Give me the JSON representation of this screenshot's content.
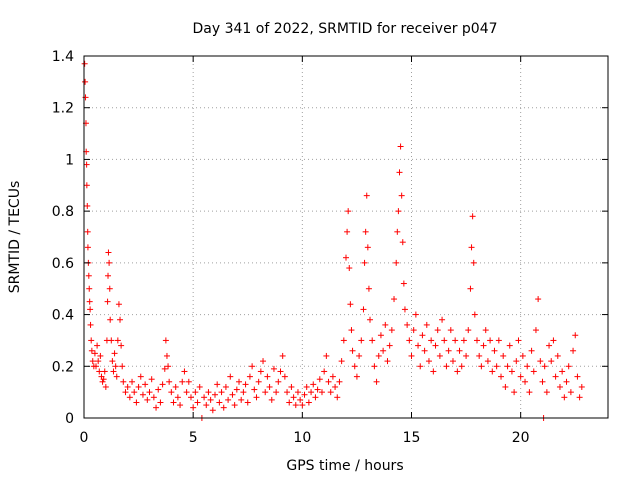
{
  "chart_data": {
    "type": "scatter",
    "title": "Day 341 of 2022, SRMTID for receiver p047",
    "xlabel": "GPS time / hours",
    "ylabel": "SRMTID / TECUs",
    "xlim": [
      0,
      24
    ],
    "ylim": [
      0,
      1.4
    ],
    "xticks": [
      0,
      5,
      10,
      15,
      20
    ],
    "xtick_labels": [
      "0",
      "5",
      "10",
      "15",
      "20"
    ],
    "yticks": [
      0,
      0.2,
      0.4,
      0.6,
      0.8,
      1.0,
      1.2,
      1.4
    ],
    "ytick_labels": [
      "0",
      "0.2",
      "0.4",
      "0.6",
      "0.8",
      "1",
      "1.2",
      "1.4"
    ],
    "grid": true,
    "marker": "plus",
    "color": "#ff0000",
    "series": [
      {
        "name": "SRMTID p047",
        "points": [
          [
            0.03,
            1.37
          ],
          [
            0.05,
            1.3
          ],
          [
            0.07,
            1.24
          ],
          [
            0.09,
            1.14
          ],
          [
            0.1,
            1.03
          ],
          [
            0.12,
            0.98
          ],
          [
            0.13,
            0.9
          ],
          [
            0.15,
            0.82
          ],
          [
            0.17,
            0.72
          ],
          [
            0.18,
            0.66
          ],
          [
            0.2,
            0.6
          ],
          [
            0.22,
            0.55
          ],
          [
            0.24,
            0.5
          ],
          [
            0.26,
            0.45
          ],
          [
            0.28,
            0.42
          ],
          [
            0.3,
            0.36
          ],
          [
            0.33,
            0.3
          ],
          [
            0.36,
            0.26
          ],
          [
            0.4,
            0.22
          ],
          [
            0.45,
            0.2
          ],
          [
            0.5,
            0.25
          ],
          [
            0.55,
            0.2
          ],
          [
            0.6,
            0.28
          ],
          [
            0.65,
            0.22
          ],
          [
            0.7,
            0.18
          ],
          [
            0.75,
            0.24
          ],
          [
            0.8,
            0.16
          ],
          [
            0.85,
            0.14
          ],
          [
            0.9,
            0.15
          ],
          [
            0.95,
            0.18
          ],
          [
            1.0,
            0.12
          ],
          [
            1.05,
            0.3
          ],
          [
            1.08,
            0.45
          ],
          [
            1.1,
            0.55
          ],
          [
            1.12,
            0.64
          ],
          [
            1.15,
            0.6
          ],
          [
            1.18,
            0.5
          ],
          [
            1.2,
            0.38
          ],
          [
            1.25,
            0.3
          ],
          [
            1.3,
            0.22
          ],
          [
            1.35,
            0.18
          ],
          [
            1.4,
            0.25
          ],
          [
            1.45,
            0.2
          ],
          [
            1.5,
            0.16
          ],
          [
            1.55,
            0.3
          ],
          [
            1.6,
            0.44
          ],
          [
            1.65,
            0.38
          ],
          [
            1.7,
            0.28
          ],
          [
            1.75,
            0.2
          ],
          [
            1.8,
            0.14
          ],
          [
            1.9,
            0.1
          ],
          [
            2.0,
            0.12
          ],
          [
            2.1,
            0.08
          ],
          [
            2.2,
            0.14
          ],
          [
            2.3,
            0.1
          ],
          [
            2.4,
            0.06
          ],
          [
            2.5,
            0.12
          ],
          [
            2.6,
            0.16
          ],
          [
            2.7,
            0.09
          ],
          [
            2.8,
            0.13
          ],
          [
            2.9,
            0.07
          ],
          [
            3.0,
            0.1
          ],
          [
            3.1,
            0.15
          ],
          [
            3.2,
            0.08
          ],
          [
            3.3,
            0.04
          ],
          [
            3.4,
            0.11
          ],
          [
            3.5,
            0.06
          ],
          [
            3.6,
            0.13
          ],
          [
            3.7,
            0.19
          ],
          [
            3.75,
            0.3
          ],
          [
            3.8,
            0.24
          ],
          [
            3.85,
            0.2
          ],
          [
            3.9,
            0.14
          ],
          [
            4.0,
            0.1
          ],
          [
            4.1,
            0.06
          ],
          [
            4.2,
            0.12
          ],
          [
            4.3,
            0.08
          ],
          [
            4.4,
            0.05
          ],
          [
            4.5,
            0.14
          ],
          [
            4.6,
            0.18
          ],
          [
            4.7,
            0.1
          ],
          [
            4.8,
            0.14
          ],
          [
            4.9,
            0.08
          ],
          [
            5.0,
            0.04
          ],
          [
            5.1,
            0.1
          ],
          [
            5.2,
            0.06
          ],
          [
            5.3,
            0.12
          ],
          [
            5.4,
            0.0
          ],
          [
            5.5,
            0.08
          ],
          [
            5.6,
            0.05
          ],
          [
            5.7,
            0.1
          ],
          [
            5.8,
            0.07
          ],
          [
            5.9,
            0.03
          ],
          [
            6.0,
            0.09
          ],
          [
            6.1,
            0.13
          ],
          [
            6.2,
            0.06
          ],
          [
            6.3,
            0.1
          ],
          [
            6.4,
            0.04
          ],
          [
            6.5,
            0.12
          ],
          [
            6.6,
            0.07
          ],
          [
            6.7,
            0.16
          ],
          [
            6.8,
            0.09
          ],
          [
            6.9,
            0.05
          ],
          [
            7.0,
            0.11
          ],
          [
            7.1,
            0.14
          ],
          [
            7.2,
            0.07
          ],
          [
            7.3,
            0.1
          ],
          [
            7.4,
            0.13
          ],
          [
            7.5,
            0.06
          ],
          [
            7.6,
            0.16
          ],
          [
            7.7,
            0.2
          ],
          [
            7.8,
            0.11
          ],
          [
            7.9,
            0.08
          ],
          [
            8.0,
            0.14
          ],
          [
            8.1,
            0.18
          ],
          [
            8.2,
            0.22
          ],
          [
            8.3,
            0.1
          ],
          [
            8.4,
            0.16
          ],
          [
            8.5,
            0.12
          ],
          [
            8.6,
            0.07
          ],
          [
            8.7,
            0.19
          ],
          [
            8.8,
            0.1
          ],
          [
            8.9,
            0.14
          ],
          [
            9.0,
            0.18
          ],
          [
            9.1,
            0.24
          ],
          [
            9.2,
            0.16
          ],
          [
            9.3,
            0.1
          ],
          [
            9.4,
            0.06
          ],
          [
            9.5,
            0.12
          ],
          [
            9.6,
            0.08
          ],
          [
            9.7,
            0.05
          ],
          [
            9.8,
            0.1
          ],
          [
            9.9,
            0.07
          ],
          [
            10.0,
            0.05
          ],
          [
            10.1,
            0.09
          ],
          [
            10.2,
            0.12
          ],
          [
            10.3,
            0.06
          ],
          [
            10.4,
            0.1
          ],
          [
            10.5,
            0.13
          ],
          [
            10.6,
            0.08
          ],
          [
            10.7,
            0.11
          ],
          [
            10.8,
            0.15
          ],
          [
            10.9,
            0.1
          ],
          [
            11.0,
            0.18
          ],
          [
            11.1,
            0.24
          ],
          [
            11.2,
            0.14
          ],
          [
            11.3,
            0.1
          ],
          [
            11.4,
            0.16
          ],
          [
            11.5,
            0.12
          ],
          [
            11.6,
            0.08
          ],
          [
            11.7,
            0.14
          ],
          [
            11.8,
            0.22
          ],
          [
            11.9,
            0.3
          ],
          [
            12.0,
            0.62
          ],
          [
            12.05,
            0.72
          ],
          [
            12.1,
            0.8
          ],
          [
            12.15,
            0.58
          ],
          [
            12.2,
            0.44
          ],
          [
            12.25,
            0.34
          ],
          [
            12.3,
            0.26
          ],
          [
            12.4,
            0.2
          ],
          [
            12.5,
            0.16
          ],
          [
            12.6,
            0.24
          ],
          [
            12.7,
            0.3
          ],
          [
            12.8,
            0.42
          ],
          [
            12.85,
            0.6
          ],
          [
            12.9,
            0.72
          ],
          [
            12.95,
            0.86
          ],
          [
            13.0,
            0.66
          ],
          [
            13.05,
            0.5
          ],
          [
            13.1,
            0.38
          ],
          [
            13.2,
            0.3
          ],
          [
            13.3,
            0.2
          ],
          [
            13.4,
            0.14
          ],
          [
            13.5,
            0.24
          ],
          [
            13.6,
            0.32
          ],
          [
            13.7,
            0.26
          ],
          [
            13.8,
            0.36
          ],
          [
            13.9,
            0.22
          ],
          [
            14.0,
            0.28
          ],
          [
            14.1,
            0.34
          ],
          [
            14.2,
            0.46
          ],
          [
            14.3,
            0.6
          ],
          [
            14.35,
            0.72
          ],
          [
            14.4,
            0.8
          ],
          [
            14.45,
            0.95
          ],
          [
            14.5,
            1.05
          ],
          [
            14.55,
            0.86
          ],
          [
            14.6,
            0.68
          ],
          [
            14.65,
            0.52
          ],
          [
            14.7,
            0.42
          ],
          [
            14.8,
            0.36
          ],
          [
            14.9,
            0.3
          ],
          [
            15.0,
            0.24
          ],
          [
            15.1,
            0.34
          ],
          [
            15.2,
            0.4
          ],
          [
            15.3,
            0.28
          ],
          [
            15.4,
            0.2
          ],
          [
            15.5,
            0.32
          ],
          [
            15.6,
            0.26
          ],
          [
            15.7,
            0.36
          ],
          [
            15.8,
            0.22
          ],
          [
            15.9,
            0.3
          ],
          [
            16.0,
            0.18
          ],
          [
            16.1,
            0.28
          ],
          [
            16.2,
            0.34
          ],
          [
            16.3,
            0.24
          ],
          [
            16.4,
            0.38
          ],
          [
            16.5,
            0.3
          ],
          [
            16.6,
            0.2
          ],
          [
            16.7,
            0.26
          ],
          [
            16.8,
            0.34
          ],
          [
            16.9,
            0.22
          ],
          [
            17.0,
            0.3
          ],
          [
            17.1,
            0.18
          ],
          [
            17.2,
            0.26
          ],
          [
            17.3,
            0.2
          ],
          [
            17.4,
            0.3
          ],
          [
            17.5,
            0.24
          ],
          [
            17.6,
            0.34
          ],
          [
            17.7,
            0.5
          ],
          [
            17.75,
            0.66
          ],
          [
            17.8,
            0.78
          ],
          [
            17.85,
            0.6
          ],
          [
            17.9,
            0.4
          ],
          [
            18.0,
            0.3
          ],
          [
            18.1,
            0.24
          ],
          [
            18.2,
            0.2
          ],
          [
            18.3,
            0.28
          ],
          [
            18.4,
            0.34
          ],
          [
            18.5,
            0.22
          ],
          [
            18.6,
            0.3
          ],
          [
            18.7,
            0.18
          ],
          [
            18.8,
            0.26
          ],
          [
            18.9,
            0.2
          ],
          [
            19.0,
            0.3
          ],
          [
            19.1,
            0.16
          ],
          [
            19.2,
            0.24
          ],
          [
            19.3,
            0.12
          ],
          [
            19.4,
            0.2
          ],
          [
            19.5,
            0.28
          ],
          [
            19.6,
            0.18
          ],
          [
            19.7,
            0.1
          ],
          [
            19.8,
            0.22
          ],
          [
            19.9,
            0.3
          ],
          [
            20.0,
            0.16
          ],
          [
            20.1,
            0.24
          ],
          [
            20.2,
            0.14
          ],
          [
            20.3,
            0.2
          ],
          [
            20.4,
            0.1
          ],
          [
            20.5,
            0.26
          ],
          [
            20.6,
            0.18
          ],
          [
            20.7,
            0.34
          ],
          [
            20.8,
            0.46
          ],
          [
            20.9,
            0.22
          ],
          [
            21.0,
            0.14
          ],
          [
            21.05,
            0.0
          ],
          [
            21.1,
            0.2
          ],
          [
            21.2,
            0.1
          ],
          [
            21.3,
            0.28
          ],
          [
            21.4,
            0.22
          ],
          [
            21.5,
            0.3
          ],
          [
            21.6,
            0.16
          ],
          [
            21.7,
            0.24
          ],
          [
            21.8,
            0.12
          ],
          [
            21.9,
            0.18
          ],
          [
            22.0,
            0.08
          ],
          [
            22.1,
            0.14
          ],
          [
            22.2,
            0.2
          ],
          [
            22.3,
            0.1
          ],
          [
            22.4,
            0.26
          ],
          [
            22.5,
            0.32
          ],
          [
            22.6,
            0.16
          ],
          [
            22.7,
            0.08
          ],
          [
            22.8,
            0.12
          ]
        ]
      }
    ]
  }
}
